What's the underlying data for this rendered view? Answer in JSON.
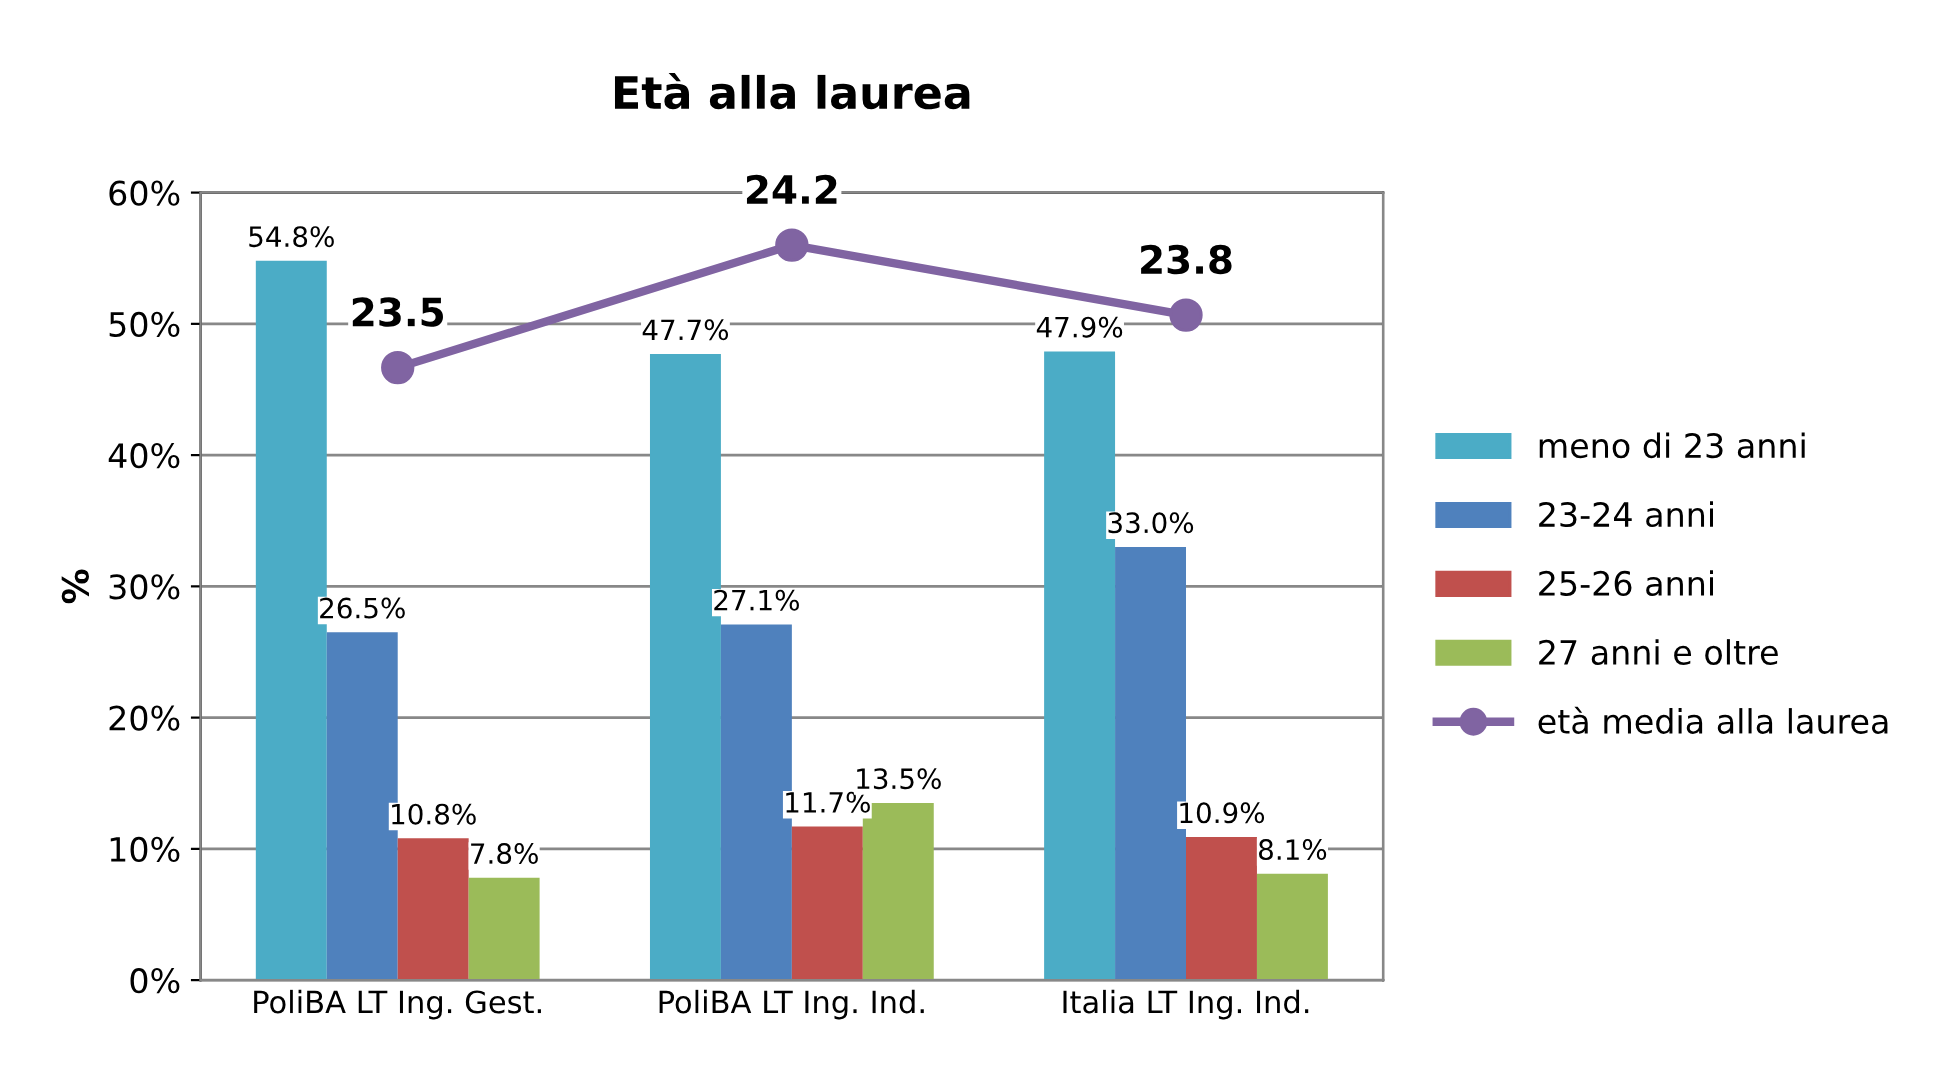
{
  "chart_data": {
    "type": "bar",
    "title": "Età alla laurea",
    "ylabel": "%",
    "categories": [
      "PoliBA LT Ing. Gest.",
      "PoliBA LT Ing. Ind.",
      "Italia LT Ing. Ind."
    ],
    "series": [
      {
        "name": "meno di 23 anni",
        "color": "#4bacc6",
        "values": [
          54.8,
          47.7,
          47.9
        ],
        "value_labels": [
          "54.8%",
          "47.7%",
          "47.9%"
        ]
      },
      {
        "name": "23-24 anni",
        "color": "#4f81bd",
        "values": [
          26.5,
          27.1,
          33.0
        ],
        "value_labels": [
          "26.5%",
          "27.1%",
          "33.0%"
        ]
      },
      {
        "name": "25-26 anni",
        "color": "#c0504d",
        "values": [
          10.8,
          11.7,
          10.9
        ],
        "value_labels": [
          "10.8%",
          "11.7%",
          "10.9%"
        ]
      },
      {
        "name": "27 anni e oltre",
        "color": "#9bbb59",
        "values": [
          7.8,
          13.5,
          8.1
        ],
        "value_labels": [
          "7.8%",
          "13.5%",
          "8.1%"
        ]
      },
      {
        "name": "età media alla laurea",
        "type": "line",
        "axis": "y2",
        "color": "#8064a2",
        "values": [
          23.5,
          24.2,
          23.8
        ],
        "value_labels": [
          "23.5",
          "24.2",
          "23.8"
        ]
      }
    ],
    "ylim": [
      0,
      60
    ],
    "yticks": [
      {
        "value": 0,
        "label": "0%"
      },
      {
        "value": 10,
        "label": "10%"
      },
      {
        "value": 20,
        "label": "20%"
      },
      {
        "value": 30,
        "label": "30%"
      },
      {
        "value": 40,
        "label": "40%"
      },
      {
        "value": 50,
        "label": "50%"
      },
      {
        "value": 60,
        "label": "60%"
      }
    ],
    "y2lim": [
      20,
      24.5
    ],
    "grid": "y",
    "legend": "right",
    "marker": "circle",
    "line_style": "solid"
  }
}
